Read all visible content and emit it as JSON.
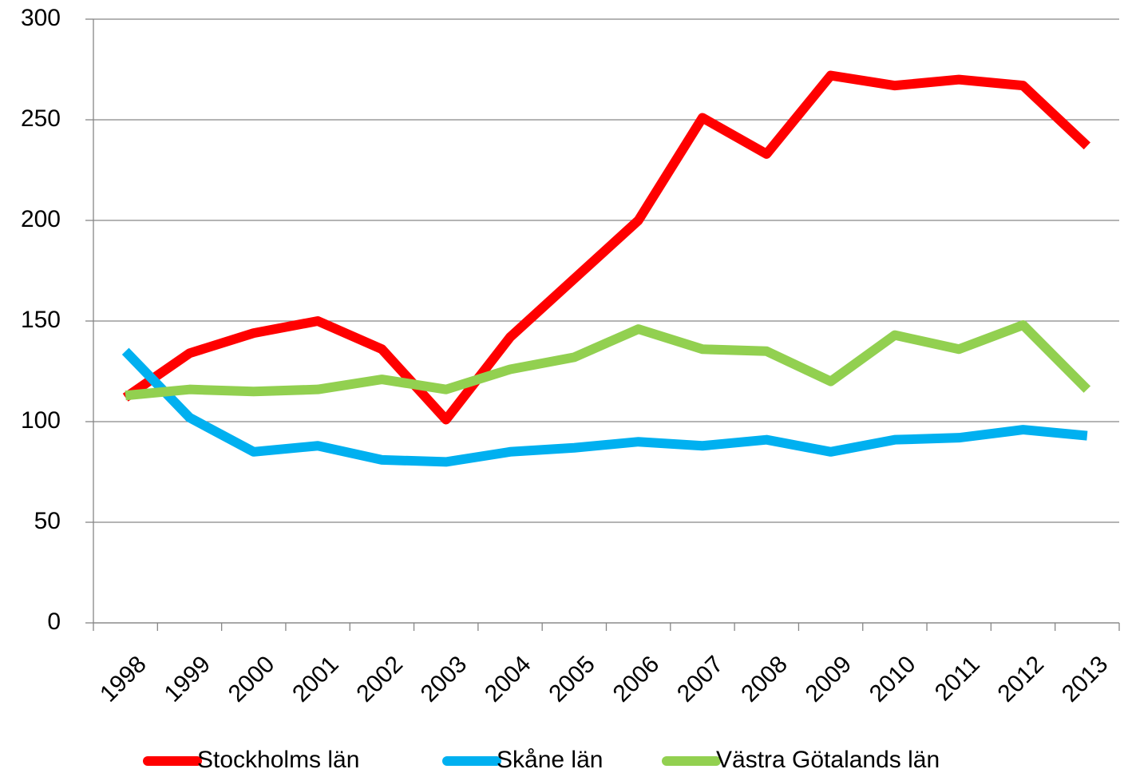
{
  "chart_data": {
    "type": "line",
    "categories": [
      "1998",
      "1999",
      "2000",
      "2001",
      "2002",
      "2003",
      "2004",
      "2005",
      "2006",
      "2007",
      "2008",
      "2009",
      "2010",
      "2011",
      "2012",
      "2013"
    ],
    "series": [
      {
        "name": "Stockholms län",
        "color": "#ff0000",
        "values": [
          112,
          134,
          144,
          150,
          136,
          101,
          142,
          171,
          200,
          251,
          233,
          272,
          267,
          270,
          267,
          237
        ]
      },
      {
        "name": "Skåne län",
        "color": "#00b0f0",
        "values": [
          135,
          102,
          85,
          88,
          81,
          80,
          85,
          87,
          90,
          88,
          91,
          85,
          91,
          92,
          96,
          93
        ]
      },
      {
        "name": "Västra Götalands län",
        "color": "#92d050",
        "values": [
          113,
          116,
          115,
          116,
          121,
          116,
          126,
          132,
          146,
          136,
          135,
          120,
          143,
          136,
          148,
          116
        ]
      }
    ],
    "ylim": [
      0,
      300
    ],
    "yticks": [
      0,
      50,
      100,
      150,
      200,
      250,
      300
    ],
    "grid": true,
    "legend": "bottom"
  }
}
